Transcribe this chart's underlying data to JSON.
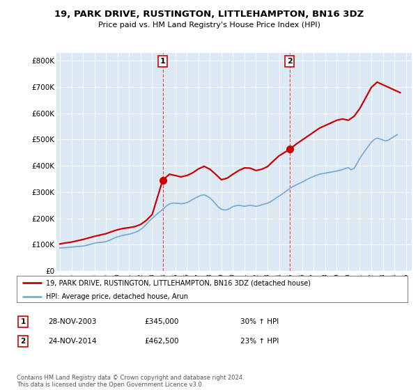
{
  "title": "19, PARK DRIVE, RUSTINGTON, LITTLEHAMPTON, BN16 3DZ",
  "subtitle": "Price paid vs. HM Land Registry's House Price Index (HPI)",
  "bg_color": "#dce9f5",
  "ylabel_ticks": [
    "£0",
    "£100K",
    "£200K",
    "£300K",
    "£400K",
    "£500K",
    "£600K",
    "£700K",
    "£800K"
  ],
  "ytick_values": [
    0,
    100000,
    200000,
    300000,
    400000,
    500000,
    600000,
    700000,
    800000
  ],
  "ylim": [
    0,
    830000
  ],
  "xlim_start": 1994.7,
  "xlim_end": 2025.5,
  "xtick_years": [
    1995,
    1996,
    1997,
    1998,
    1999,
    2000,
    2001,
    2002,
    2003,
    2004,
    2005,
    2006,
    2007,
    2008,
    2009,
    2010,
    2011,
    2012,
    2013,
    2014,
    2015,
    2016,
    2017,
    2018,
    2019,
    2020,
    2021,
    2022,
    2023,
    2024,
    2025
  ],
  "red_line_color": "#cc0000",
  "blue_line_color": "#7aadd4",
  "marker1_x": 2003.91,
  "marker1_y": 345000,
  "marker2_x": 2014.91,
  "marker2_y": 462500,
  "vline1_x": 2003.91,
  "vline2_x": 2014.91,
  "legend_line1": "19, PARK DRIVE, RUSTINGTON, LITTLEHAMPTON, BN16 3DZ (detached house)",
  "legend_line2": "HPI: Average price, detached house, Arun",
  "table_row1": [
    "1",
    "28-NOV-2003",
    "£345,000",
    "30% ↑ HPI"
  ],
  "table_row2": [
    "2",
    "24-NOV-2014",
    "£462,500",
    "23% ↑ HPI"
  ],
  "footer": "Contains HM Land Registry data © Crown copyright and database right 2024.\nThis data is licensed under the Open Government Licence v3.0.",
  "hpi_data": {
    "years": [
      1995.0,
      1995.25,
      1995.5,
      1995.75,
      1996.0,
      1996.25,
      1996.5,
      1996.75,
      1997.0,
      1997.25,
      1997.5,
      1997.75,
      1998.0,
      1998.25,
      1998.5,
      1998.75,
      1999.0,
      1999.25,
      1999.5,
      1999.75,
      2000.0,
      2000.25,
      2000.5,
      2000.75,
      2001.0,
      2001.25,
      2001.5,
      2001.75,
      2002.0,
      2002.25,
      2002.5,
      2002.75,
      2003.0,
      2003.25,
      2003.5,
      2003.75,
      2004.0,
      2004.25,
      2004.5,
      2004.75,
      2005.0,
      2005.25,
      2005.5,
      2005.75,
      2006.0,
      2006.25,
      2006.5,
      2006.75,
      2007.0,
      2007.25,
      2007.5,
      2007.75,
      2008.0,
      2008.25,
      2008.5,
      2008.75,
      2009.0,
      2009.25,
      2009.5,
      2009.75,
      2010.0,
      2010.25,
      2010.5,
      2010.75,
      2011.0,
      2011.25,
      2011.5,
      2011.75,
      2012.0,
      2012.25,
      2012.5,
      2012.75,
      2013.0,
      2013.25,
      2013.5,
      2013.75,
      2014.0,
      2014.25,
      2014.5,
      2014.75,
      2015.0,
      2015.25,
      2015.5,
      2015.75,
      2016.0,
      2016.25,
      2016.5,
      2016.75,
      2017.0,
      2017.25,
      2017.5,
      2017.75,
      2018.0,
      2018.25,
      2018.5,
      2018.75,
      2019.0,
      2019.25,
      2019.5,
      2019.75,
      2020.0,
      2020.25,
      2020.5,
      2020.75,
      2021.0,
      2021.25,
      2021.5,
      2021.75,
      2022.0,
      2022.25,
      2022.5,
      2022.75,
      2023.0,
      2023.25,
      2023.5,
      2023.75,
      2024.0,
      2024.25
    ],
    "values": [
      88000,
      88500,
      89000,
      90000,
      91000,
      92000,
      93500,
      94000,
      95000,
      97000,
      100000,
      103000,
      106000,
      108000,
      109000,
      110000,
      112000,
      116000,
      121000,
      126000,
      130000,
      133000,
      136000,
      138000,
      140000,
      143000,
      147000,
      151000,
      158000,
      167000,
      178000,
      190000,
      200000,
      210000,
      220000,
      228000,
      238000,
      248000,
      255000,
      258000,
      258000,
      257000,
      256000,
      257000,
      260000,
      265000,
      272000,
      278000,
      283000,
      288000,
      290000,
      285000,
      278000,
      268000,
      255000,
      243000,
      235000,
      232000,
      233000,
      238000,
      245000,
      248000,
      250000,
      248000,
      246000,
      248000,
      250000,
      248000,
      246000,
      248000,
      252000,
      255000,
      258000,
      263000,
      270000,
      278000,
      285000,
      292000,
      300000,
      308000,
      316000,
      322000,
      328000,
      333000,
      338000,
      344000,
      350000,
      355000,
      360000,
      364000,
      368000,
      370000,
      372000,
      374000,
      376000,
      378000,
      380000,
      383000,
      386000,
      390000,
      393000,
      385000,
      390000,
      408000,
      428000,
      445000,
      460000,
      475000,
      490000,
      500000,
      505000,
      502000,
      498000,
      495000,
      498000,
      505000,
      512000,
      518000
    ]
  },
  "price_paid_data": {
    "years": [
      1995.0,
      1995.5,
      1996.0,
      1996.5,
      1997.0,
      1997.5,
      1998.0,
      1998.5,
      1999.0,
      1999.5,
      2000.0,
      2000.5,
      2001.0,
      2001.5,
      2002.0,
      2002.5,
      2003.0,
      2003.91,
      2004.5,
      2005.0,
      2005.5,
      2006.0,
      2006.5,
      2007.0,
      2007.5,
      2008.0,
      2008.5,
      2009.0,
      2009.5,
      2010.0,
      2010.5,
      2011.0,
      2011.5,
      2012.0,
      2012.5,
      2013.0,
      2013.5,
      2014.0,
      2014.91,
      2015.5,
      2016.0,
      2016.5,
      2017.0,
      2017.5,
      2018.0,
      2018.5,
      2019.0,
      2019.5,
      2020.0,
      2020.5,
      2021.0,
      2021.5,
      2022.0,
      2022.5,
      2023.0,
      2023.5,
      2024.0,
      2024.5
    ],
    "values": [
      103000,
      107000,
      110000,
      115000,
      120000,
      126000,
      132000,
      137000,
      142000,
      150000,
      157000,
      162000,
      165000,
      169000,
      177000,
      193000,
      215000,
      345000,
      368000,
      363000,
      358000,
      363000,
      373000,
      388000,
      398000,
      387000,
      368000,
      347000,
      353000,
      368000,
      382000,
      392000,
      391000,
      382000,
      387000,
      397000,
      418000,
      438000,
      462500,
      483000,
      498000,
      513000,
      528000,
      543000,
      553000,
      563000,
      573000,
      578000,
      573000,
      588000,
      618000,
      658000,
      698000,
      718000,
      708000,
      698000,
      688000,
      678000
    ]
  }
}
